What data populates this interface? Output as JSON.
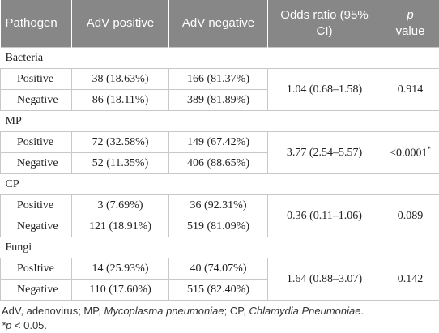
{
  "table": {
    "header": [
      "Pathogen",
      "AdV positive",
      "AdV negative",
      "Odds ratio (95% CI)"
    ],
    "header_p": {
      "symbol": "p",
      "text": "value"
    },
    "groups": [
      {
        "name": "Bacteria",
        "rows": [
          {
            "label": "Positive",
            "adv_positive": "38 (18.63%)",
            "adv_negative": "166 (81.37%)"
          },
          {
            "label": "Negative",
            "adv_positive": "86 (18.11%)",
            "adv_negative": "389 (81.89%)"
          }
        ],
        "odds_ratio": "1.04 (0.68–1.58)",
        "p_value": "0.914"
      },
      {
        "name": "MP",
        "rows": [
          {
            "label": "Positive",
            "adv_positive": "72 (32.58%)",
            "adv_negative": "149 (67.42%)"
          },
          {
            "label": "Negative",
            "adv_positive": "52 (11.35%)",
            "adv_negative": "406 (88.65%)"
          }
        ],
        "odds_ratio": "3.77 (2.54–5.57)",
        "p_value": "<0.0001",
        "p_value_note": "*"
      },
      {
        "name": "CP",
        "rows": [
          {
            "label": "Positive",
            "adv_positive": "3 (7.69%)",
            "adv_negative": "36 (92.31%)"
          },
          {
            "label": "Negative",
            "adv_positive": "121 (18.91%)",
            "adv_negative": "519 (81.09%)"
          }
        ],
        "odds_ratio": "0.36 (0.11–1.06)",
        "p_value": "0.089"
      },
      {
        "name": "Fungi",
        "rows": [
          {
            "label": "PosItive",
            "adv_positive": "14 (25.93%)",
            "adv_negative": "40 (74.07%)"
          },
          {
            "label": "Negative",
            "adv_positive": "110 (17.60%)",
            "adv_negative": "515 (82.40%)"
          }
        ],
        "odds_ratio": "1.64 (0.88–3.07)",
        "p_value": "0.142"
      }
    ]
  },
  "footnotes": [
    [
      {
        "text": "AdV, adenovirus; MP, ",
        "italic": false
      },
      {
        "text": "Mycoplasma pneumoniae",
        "italic": true
      },
      {
        "text": "; CP, ",
        "italic": false
      },
      {
        "text": "Chlamydia Pneumoniae",
        "italic": true
      },
      {
        "text": ".",
        "italic": false
      }
    ],
    [
      {
        "text": "*",
        "italic": true
      },
      {
        "text": "p",
        "italic": true
      },
      {
        "text": " < 0.05.",
        "italic": false
      }
    ]
  ]
}
